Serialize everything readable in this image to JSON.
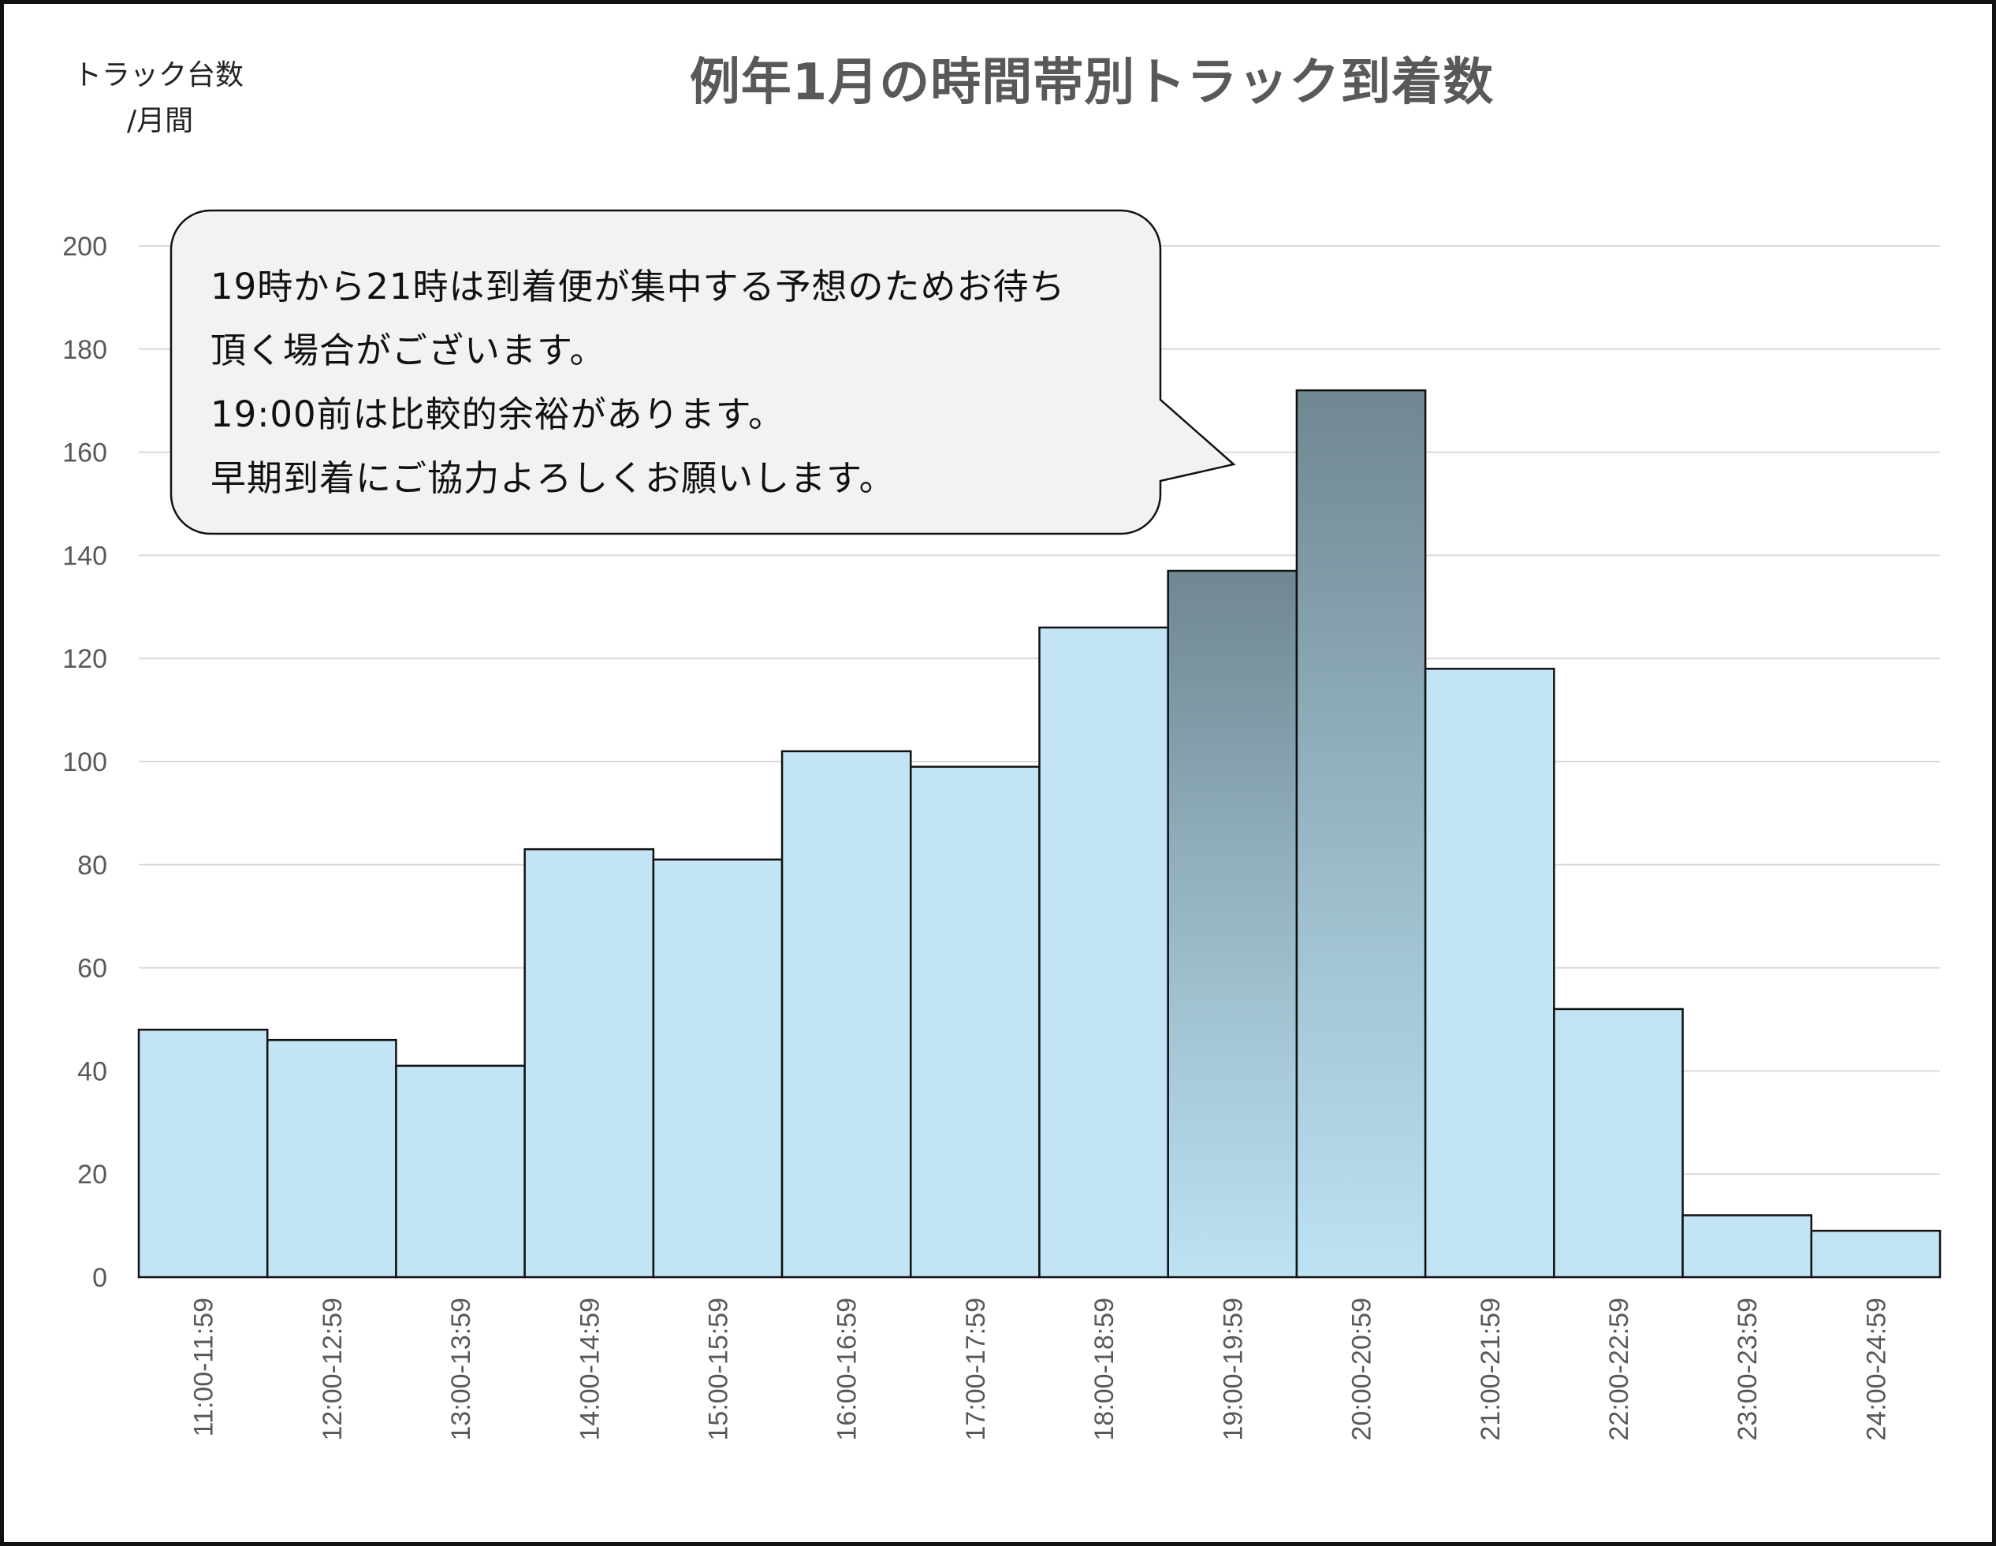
{
  "colors": {
    "bar_fill": "#C2E4F4",
    "bar_highlight_top": "#6F8791",
    "bar_highlight_bottom": "#BCE2F4",
    "bar_border": "#111111",
    "grid": "#D9D9D9",
    "axis_text": "#595959",
    "title_text": "#595959",
    "callout_fill": "#F2F2F2"
  },
  "callout": {
    "lines": [
      "19時から21時は到着便が集中する予想のためお待ち",
      "頂く場合がございます。",
      "19:00前は比較的余裕があります。",
      "早期到着にご協力よろしくお願いします。"
    ]
  },
  "chart_data": {
    "type": "bar",
    "title": "例年1月の時間帯別トラック到着数",
    "ylabel": "トラック台数",
    "ylabel_unit": "/月間",
    "xlabel": "",
    "categories": [
      "11:00-11:59",
      "12:00-12:59",
      "13:00-13:59",
      "14:00-14:59",
      "15:00-15:59",
      "16:00-16:59",
      "17:00-17:59",
      "18:00-18:59",
      "19:00-19:59",
      "20:00-20:59",
      "21:00-21:59",
      "22:00-22:59",
      "23:00-23:59",
      "24:00-24:59"
    ],
    "values": [
      48,
      46,
      41,
      83,
      81,
      102,
      99,
      126,
      137,
      172,
      118,
      52,
      12,
      9
    ],
    "highlighted_categories": [
      "19:00-19:59",
      "20:00-20:59"
    ],
    "ylim": [
      0,
      200
    ],
    "yticks": [
      0,
      20,
      40,
      60,
      80,
      100,
      120,
      140,
      160,
      180,
      200
    ],
    "grid": true,
    "legend": "none"
  }
}
